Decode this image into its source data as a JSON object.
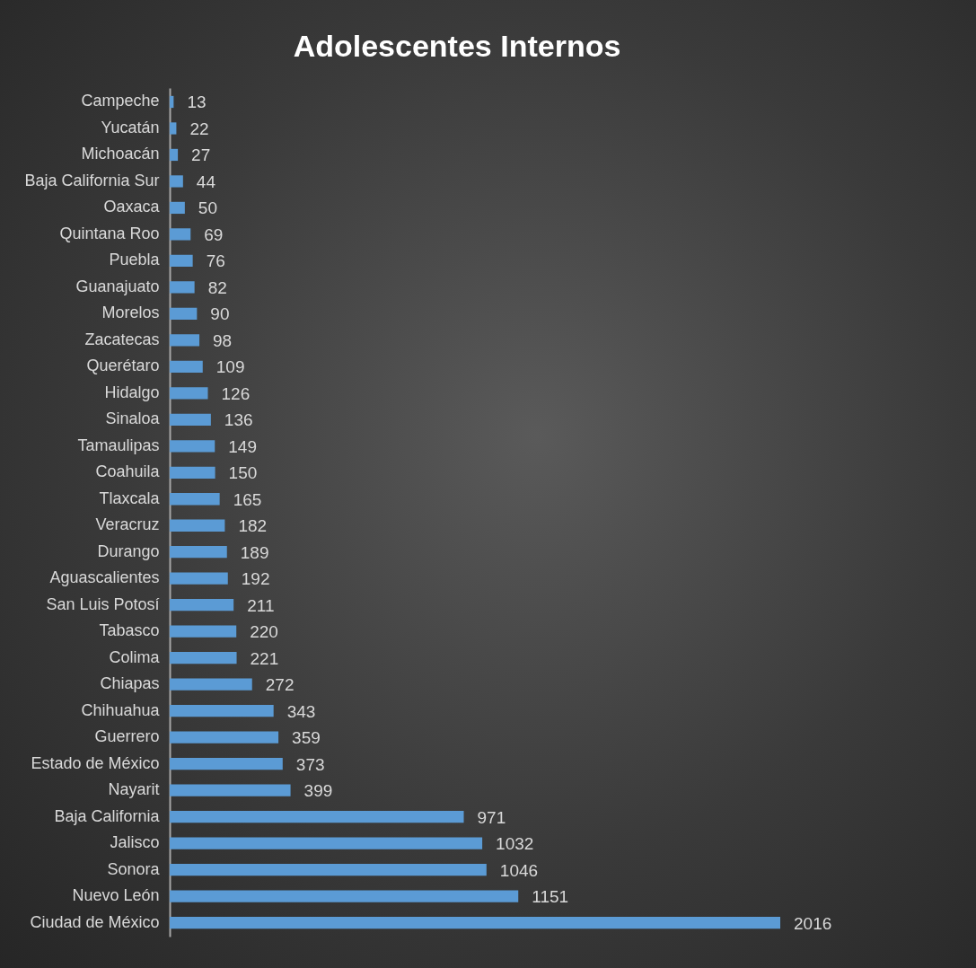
{
  "chart_data": {
    "type": "bar",
    "title": "Adolescentes Internos",
    "orientation": "horizontal",
    "data_labels": true,
    "color": "#5b9bd5",
    "categories": [
      "Campeche",
      "Yucatán",
      "Michoacán",
      "Baja California Sur",
      "Oaxaca",
      "Quintana Roo",
      "Puebla",
      "Guanajuato",
      "Morelos",
      "Zacatecas",
      "Querétaro",
      "Hidalgo",
      "Sinaloa",
      "Tamaulipas",
      "Coahuila",
      "Tlaxcala",
      "Veracruz",
      "Durango",
      "Aguascalientes",
      "San Luis Potosí",
      "Tabasco",
      "Colima",
      "Chiapas",
      "Chihuahua",
      "Guerrero",
      "Estado de México",
      "Nayarit",
      "Baja California",
      "Jalisco",
      "Sonora",
      "Nuevo León",
      "Ciudad de México"
    ],
    "values": [
      13,
      22,
      27,
      44,
      50,
      69,
      76,
      82,
      90,
      98,
      109,
      126,
      136,
      149,
      150,
      165,
      182,
      189,
      192,
      211,
      220,
      221,
      272,
      343,
      359,
      373,
      399,
      971,
      1032,
      1046,
      1151,
      2016
    ]
  }
}
